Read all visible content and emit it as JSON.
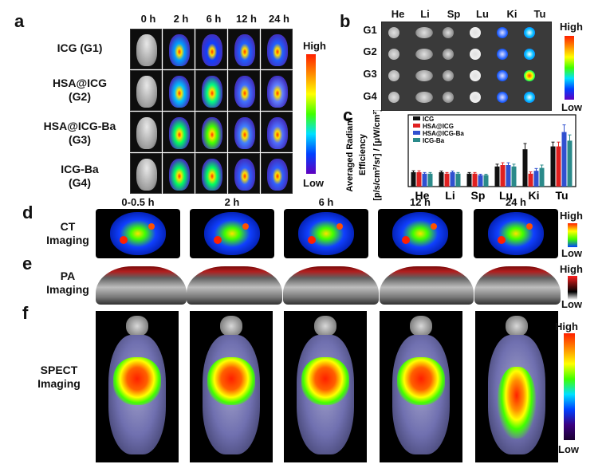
{
  "panels": {
    "a": {
      "letter": "a",
      "times": [
        "0 h",
        "2 h",
        "6 h",
        "12 h",
        "24 h"
      ],
      "groups": [
        {
          "line1": "ICG (G1)",
          "line2": ""
        },
        {
          "line1": "HSA@ICG",
          "line2": "(G2)"
        },
        {
          "line1": "HSA@ICG-Ba",
          "line2": "(G3)"
        },
        {
          "line1": "ICG-Ba",
          "line2": "(G4)"
        }
      ],
      "scale_high": "High",
      "scale_low": "Low"
    },
    "b": {
      "letter": "b",
      "organs": [
        "He",
        "Li",
        "Sp",
        "Lu",
        "Ki",
        "Tu"
      ],
      "groups": [
        "G1",
        "G2",
        "G3",
        "G4"
      ],
      "scale_high": "High",
      "scale_low": "Low"
    },
    "c": {
      "letter": "c"
    },
    "d": {
      "letter": "d",
      "label_line1": "CT",
      "label_line2": "Imaging",
      "times": [
        "0-0.5 h",
        "2 h",
        "6 h",
        "12 h",
        "24 h"
      ],
      "scale_high": "High",
      "scale_low": "Low"
    },
    "e": {
      "letter": "e",
      "label_line1": "PA",
      "label_line2": "Imaging",
      "scale_high": "High",
      "scale_low": "Low"
    },
    "f": {
      "letter": "f",
      "label_line1": "SPECT",
      "label_line2": "Imaging",
      "scale_high": "High",
      "scale_low": "Low"
    }
  },
  "colors": {
    "ICG": "#111111",
    "HSA@ICG": "#e02020",
    "HSA@ICG-Ba": "#3050d0",
    "ICG-Ba": "#2a8a8a"
  },
  "chart_data": {
    "type": "bar",
    "categories": [
      "He",
      "Li",
      "Sp",
      "Lu",
      "Ki",
      "Tu"
    ],
    "ylabel_line1": "Averaged Radiant",
    "ylabel_line2": "Efficiency",
    "ylabel_line3": "[p/s/cm²/sr] / [μW/cm²]",
    "ylim": [
      0,
      25
    ],
    "legend_position": "top-left",
    "series": [
      {
        "name": "ICG",
        "values": [
          5,
          5,
          4.5,
          7,
          13,
          14
        ]
      },
      {
        "name": "HSA@ICG",
        "values": [
          5,
          4.5,
          4.5,
          7.5,
          4.5,
          14
        ]
      },
      {
        "name": "HSA@ICG-Ba",
        "values": [
          4.5,
          5,
          4,
          7.5,
          5.5,
          19
        ]
      },
      {
        "name": "ICG-Ba",
        "values": [
          4.5,
          4.5,
          4,
          7,
          6.5,
          16
        ]
      }
    ],
    "errors": [
      [
        0.5,
        0.4,
        0.4,
        0.8,
        2.0,
        1.5
      ],
      [
        0.5,
        0.4,
        0.4,
        0.8,
        0.6,
        1.5
      ],
      [
        0.4,
        0.4,
        0.3,
        0.8,
        0.8,
        2.5
      ],
      [
        0.4,
        0.4,
        0.3,
        0.8,
        1.0,
        2.0
      ]
    ]
  }
}
